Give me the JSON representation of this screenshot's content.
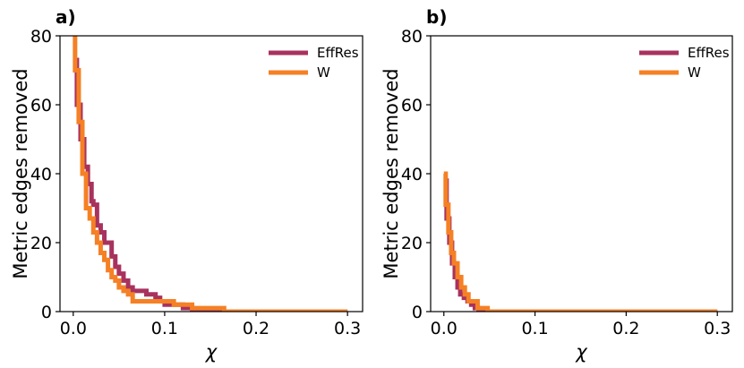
{
  "chart_data": [
    {
      "type": "line",
      "panel_label": "a)",
      "xlabel": "χ",
      "ylabel": "Metric edges removed",
      "xlim": [
        -0.0145,
        0.3165
      ],
      "ylim": [
        0,
        80
      ],
      "xticks": [
        0.0,
        0.1,
        0.2,
        0.3
      ],
      "xtick_labels": [
        "0.0",
        "0.1",
        "0.2",
        "0.3"
      ],
      "yticks": [
        0,
        20,
        40,
        60,
        80
      ],
      "ytick_labels": [
        "0",
        "20",
        "40",
        "60",
        "80"
      ],
      "legend_position": "top-right",
      "grid": false,
      "series": [
        {
          "name": "EffRes",
          "color": "#a8325e",
          "x": [
            0.0,
            0.004,
            0.008,
            0.012,
            0.016,
            0.02,
            0.022,
            0.026,
            0.03,
            0.034,
            0.038,
            0.042,
            0.046,
            0.05,
            0.055,
            0.06,
            0.065,
            0.07,
            0.075,
            0.08,
            0.085,
            0.09,
            0.095,
            0.1,
            0.11,
            0.12,
            0.13,
            0.3
          ],
          "y": [
            73,
            60,
            50,
            42,
            37,
            32,
            31,
            25,
            23,
            20,
            20,
            16,
            13,
            11,
            9,
            7,
            6,
            6,
            6,
            5,
            5,
            4,
            3,
            2,
            2,
            1,
            0,
            0
          ]
        },
        {
          "name": "W",
          "color": "#f58025",
          "x": [
            0.0,
            0.002,
            0.006,
            0.01,
            0.014,
            0.018,
            0.022,
            0.026,
            0.03,
            0.034,
            0.038,
            0.042,
            0.046,
            0.05,
            0.055,
            0.06,
            0.065,
            0.07,
            0.075,
            0.08,
            0.09,
            0.1,
            0.11,
            0.13,
            0.15,
            0.165,
            0.3
          ],
          "y": [
            80,
            70,
            55,
            40,
            30,
            27,
            23,
            20,
            17,
            15,
            12,
            10,
            9,
            7,
            6,
            5,
            3,
            3,
            3,
            3,
            3,
            3,
            2,
            1,
            1,
            0,
            0
          ]
        }
      ]
    },
    {
      "type": "line",
      "panel_label": "b)",
      "xlabel": "χ",
      "ylabel": "Metric edges removed",
      "xlim": [
        -0.0145,
        0.3165
      ],
      "ylim": [
        0,
        80
      ],
      "xticks": [
        0.0,
        0.1,
        0.2,
        0.3
      ],
      "xtick_labels": [
        "0.0",
        "0.1",
        "0.2",
        "0.3"
      ],
      "yticks": [
        0,
        20,
        40,
        60,
        80
      ],
      "ytick_labels": [
        "0",
        "20",
        "40",
        "60",
        "80"
      ],
      "legend_position": "top-right",
      "grid": false,
      "series": [
        {
          "name": "EffRes",
          "color": "#a8325e",
          "x": [
            0.0,
            0.003,
            0.006,
            0.009,
            0.012,
            0.015,
            0.018,
            0.022,
            0.026,
            0.03,
            0.034,
            0.038,
            0.3
          ],
          "y": [
            38,
            27,
            20,
            14,
            10,
            7,
            5,
            4,
            3,
            2,
            1,
            0,
            0
          ]
        },
        {
          "name": "W",
          "color": "#f58025",
          "x": [
            0.0,
            0.002,
            0.005,
            0.008,
            0.011,
            0.015,
            0.019,
            0.023,
            0.027,
            0.032,
            0.037,
            0.043,
            0.048,
            0.3
          ],
          "y": [
            40,
            31,
            23,
            17,
            14,
            10,
            7,
            5,
            3,
            3,
            1,
            1,
            0,
            0
          ]
        }
      ]
    }
  ]
}
